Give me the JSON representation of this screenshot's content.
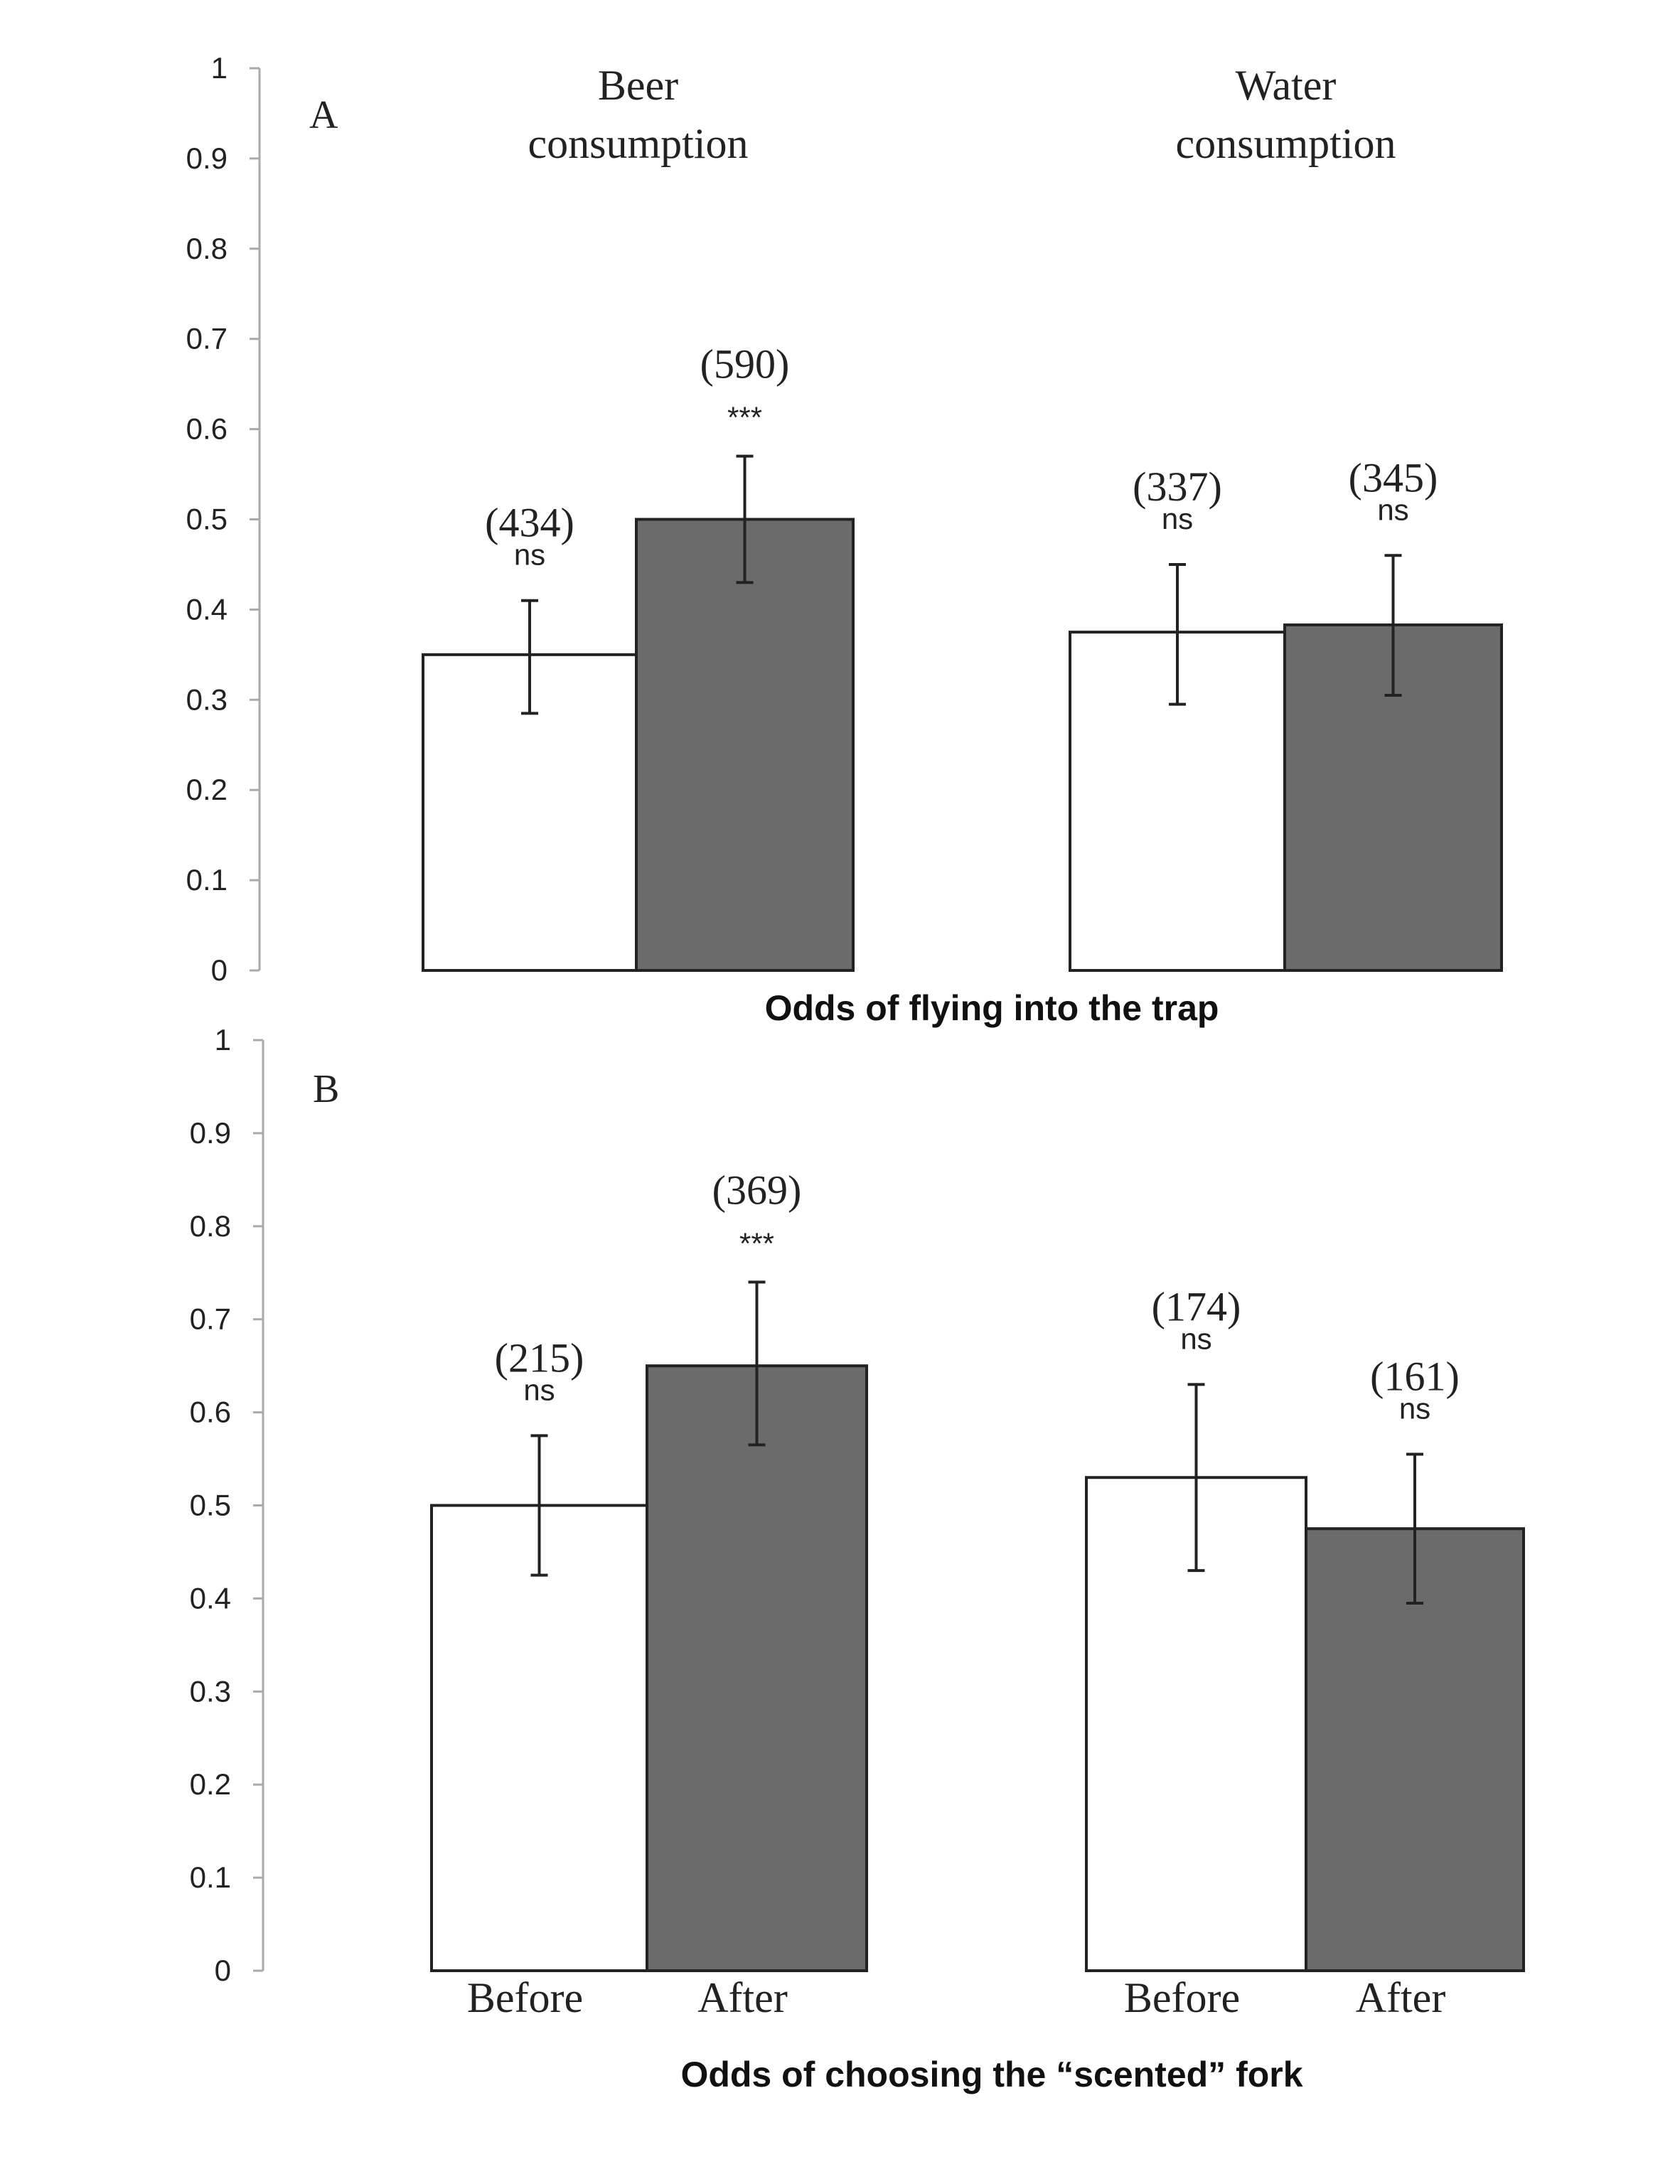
{
  "chart_data": [
    {
      "type": "bar",
      "panel_label": "A",
      "xlabel": "Odds of flying into the trap",
      "ylabel": "",
      "ylim": [
        0,
        1
      ],
      "yticks": [
        "0",
        "0.1",
        "0.2",
        "0.3",
        "0.4",
        "0.5",
        "0.6",
        "0.7",
        "0.8",
        "0.9",
        "1"
      ],
      "groups": [
        {
          "title_lines": [
            "Beer",
            "consumption"
          ],
          "bars": [
            {
              "condition": "Before",
              "value": 0.35,
              "err_low": 0.285,
              "err_high": 0.41,
              "n": "(434)",
              "sig": "ns"
            },
            {
              "condition": "After",
              "value": 0.5,
              "err_low": 0.43,
              "err_high": 0.57,
              "n": "(590)",
              "sig": "***"
            }
          ]
        },
        {
          "title_lines": [
            "Water",
            "consumption"
          ],
          "bars": [
            {
              "condition": "Before",
              "value": 0.375,
              "err_low": 0.295,
              "err_high": 0.45,
              "n": "(337)",
              "sig": "ns"
            },
            {
              "condition": "After",
              "value": 0.383,
              "err_low": 0.305,
              "err_high": 0.46,
              "n": "(345)",
              "sig": "ns"
            }
          ]
        }
      ]
    },
    {
      "type": "bar",
      "panel_label": "B",
      "xlabel": "Odds of choosing the “scented” fork",
      "ylabel": "",
      "ylim": [
        0,
        1
      ],
      "yticks": [
        "0",
        "0.1",
        "0.2",
        "0.3",
        "0.4",
        "0.5",
        "0.6",
        "0.7",
        "0.8",
        "0.9",
        "1"
      ],
      "category_labels": [
        "Before",
        "After",
        "Before",
        "After"
      ],
      "groups": [
        {
          "title_lines": [],
          "bars": [
            {
              "condition": "Before",
              "value": 0.5,
              "err_low": 0.425,
              "err_high": 0.575,
              "n": "(215)",
              "sig": "ns"
            },
            {
              "condition": "After",
              "value": 0.65,
              "err_low": 0.565,
              "err_high": 0.74,
              "n": "(369)",
              "sig": "***"
            }
          ]
        },
        {
          "title_lines": [],
          "bars": [
            {
              "condition": "Before",
              "value": 0.53,
              "err_low": 0.43,
              "err_high": 0.63,
              "n": "(174)",
              "sig": "ns"
            },
            {
              "condition": "After",
              "value": 0.475,
              "err_low": 0.395,
              "err_high": 0.555,
              "n": "(161)",
              "sig": "ns"
            }
          ]
        }
      ]
    }
  ],
  "colors": {
    "before": "#ffffff",
    "after": "#6b6b6b",
    "outline": "#222222",
    "axis": "#aaaaaa"
  }
}
